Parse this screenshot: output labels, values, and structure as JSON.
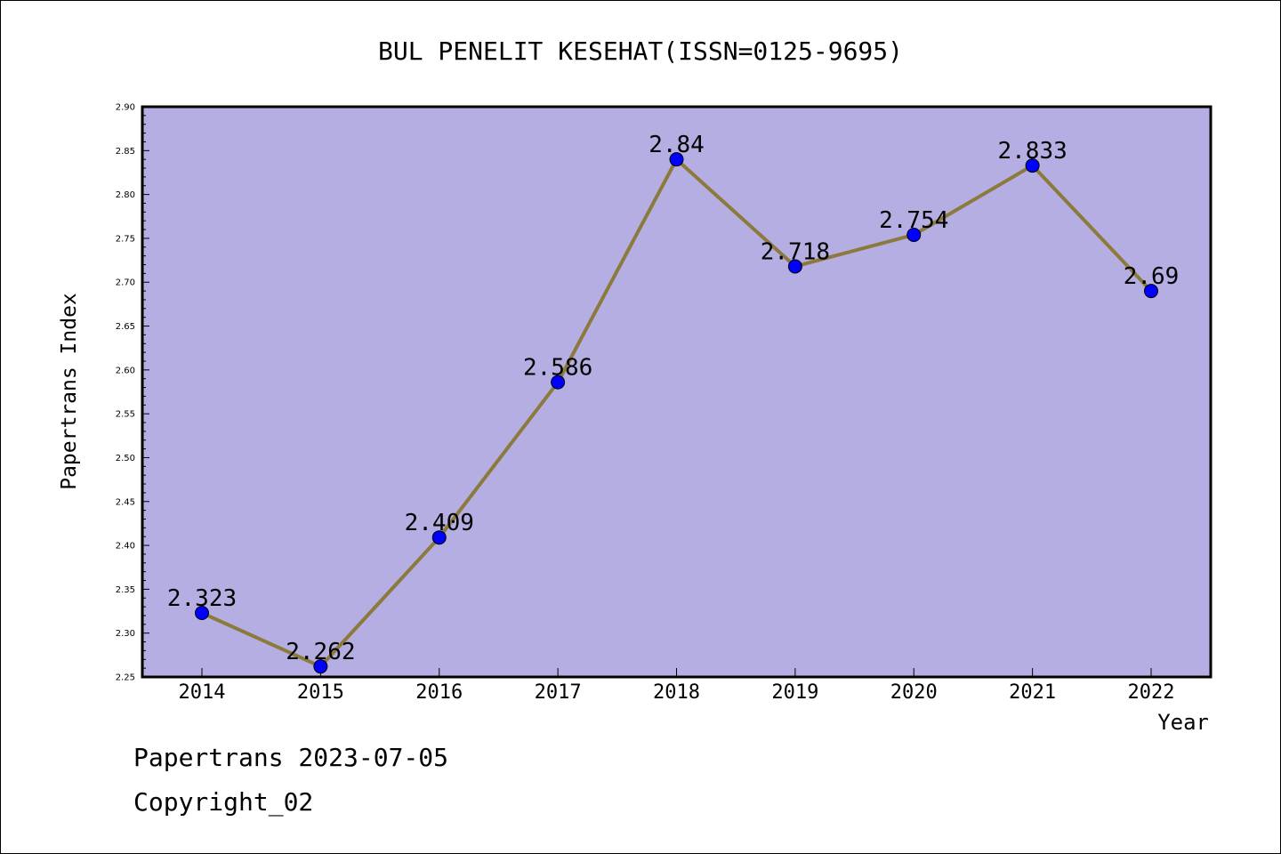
{
  "chart_data": {
    "type": "line",
    "title": "BUL PENELIT KESEHAT(ISSN=0125-9695)",
    "xlabel": "Year",
    "ylabel": "Papertrans Index",
    "categories": [
      "2014",
      "2015",
      "2016",
      "2017",
      "2018",
      "2019",
      "2020",
      "2021",
      "2022"
    ],
    "series": [
      {
        "values": [
          2.323,
          2.262,
          2.409,
          2.586,
          2.84,
          2.718,
          2.754,
          2.833,
          2.69
        ],
        "labels": [
          "2.323",
          "2.262",
          "2.409",
          "2.586",
          "2.84",
          "2.718",
          "2.754",
          "2.833",
          "2.69"
        ]
      }
    ],
    "ylim": [
      2.25,
      2.9
    ],
    "yticks": [
      "2.25",
      "2.30",
      "2.35",
      "2.40",
      "2.45",
      "2.50",
      "2.55",
      "2.60",
      "2.65",
      "2.70",
      "2.75",
      "2.80",
      "2.85",
      "2.90"
    ],
    "grid": false,
    "colors": {
      "plot_background": "#b4aee2",
      "line": "#8c7a3c",
      "marker": "#0000ff"
    }
  },
  "footer": {
    "line1": "Papertrans 2023-07-05",
    "line2": "Copyright_02"
  }
}
